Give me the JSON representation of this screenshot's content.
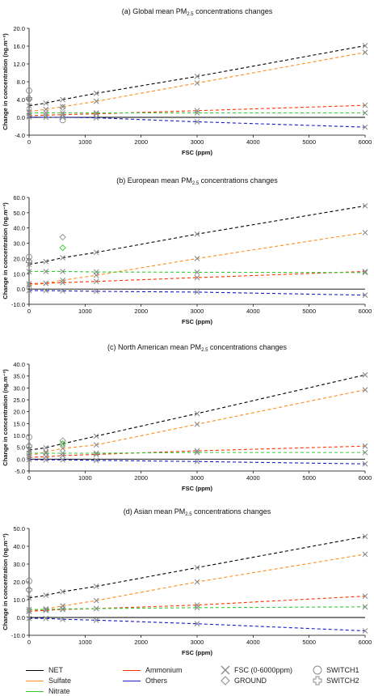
{
  "colors": {
    "net": "#000000",
    "sulfate": "#ff8c1a",
    "nitrate": "#33cc33",
    "ammonium": "#ff3300",
    "others": "#1a1acc",
    "marker": "#8c8c8c"
  },
  "legend": {
    "net": "NET",
    "sulfate": "Sulfate",
    "nitrate": "Nitrate",
    "ammonium": "Ammonium",
    "others": "Others",
    "fsc": "FSC (0-6000ppm)",
    "ground": "GROUND",
    "switch1": "SWITCH1",
    "switch2": "SWITCH2"
  },
  "chart_data": [
    {
      "type": "scatter",
      "title": "(a) Global mean PM2.5 concentrations changes",
      "xlabel": "FSC (ppm)",
      "ylabel": "Change in concentration (ng.m⁻³)",
      "xlim": [
        0,
        6000
      ],
      "ylim": [
        -4,
        20
      ],
      "xticks": [
        0,
        1000,
        2000,
        3000,
        4000,
        5000,
        6000
      ],
      "yticks": [
        "-4.0",
        "0.0",
        "4.0",
        "8.0",
        "12.0",
        "16.0",
        "20.0"
      ],
      "grid": false,
      "x": [
        0,
        300,
        600,
        1200,
        3000,
        6000
      ],
      "series": [
        {
          "key": "net",
          "values": [
            2.6,
            3.2,
            4.0,
            5.4,
            9.2,
            16.1
          ]
        },
        {
          "key": "sulfate",
          "values": [
            1.3,
            1.8,
            2.4,
            3.6,
            7.7,
            14.6
          ]
        },
        {
          "key": "ammonium",
          "values": [
            0.4,
            0.5,
            0.6,
            0.8,
            1.5,
            2.7
          ]
        },
        {
          "key": "nitrate",
          "values": [
            1.0,
            1.0,
            1.0,
            1.0,
            1.0,
            1.0
          ]
        },
        {
          "key": "others",
          "values": [
            0.1,
            0.0,
            0.0,
            -0.1,
            -1.0,
            -2.2
          ]
        }
      ],
      "ground": [
        {
          "x": 0,
          "y": 4.0
        },
        {
          "x": 600,
          "y": 2.2
        }
      ],
      "switch1": [
        {
          "x": 0,
          "y": 6.0
        },
        {
          "x": 600,
          "y": -0.6
        }
      ],
      "switch2": [
        {
          "x": 0,
          "y": 4.2
        }
      ]
    },
    {
      "type": "scatter",
      "title": "(b) European mean PM2.5 concentrations changes",
      "xlabel": "FSC (ppm)",
      "ylabel": "Change in concentration (ng.m⁻³)",
      "xlim": [
        0,
        6000
      ],
      "ylim": [
        -10,
        60
      ],
      "xticks": [
        0,
        1000,
        2000,
        3000,
        4000,
        5000,
        6000
      ],
      "yticks": [
        "-10.0",
        "0.0",
        "10.0",
        "20.0",
        "30.0",
        "40.0",
        "50.0",
        "60.0"
      ],
      "grid": false,
      "x": [
        0,
        300,
        600,
        1200,
        3000,
        6000
      ],
      "series": [
        {
          "key": "net",
          "values": [
            16.2,
            18.0,
            20.5,
            24.0,
            36.0,
            54.5
          ]
        },
        {
          "key": "sulfate",
          "values": [
            2.5,
            3.8,
            5.8,
            9.0,
            20.0,
            37.0
          ]
        },
        {
          "key": "ammonium",
          "values": [
            3.5,
            3.8,
            4.2,
            5.0,
            7.5,
            11.5
          ]
        },
        {
          "key": "nitrate",
          "values": [
            11.5,
            11.5,
            11.5,
            11.2,
            11.0,
            10.8
          ]
        },
        {
          "key": "others",
          "values": [
            -1.0,
            -1.0,
            -1.2,
            -1.5,
            -2.0,
            -4.0
          ]
        }
      ],
      "ground": [
        {
          "x": 600,
          "y": 34.0
        },
        {
          "x": 600,
          "y": 27.0
        }
      ],
      "switch1": [
        {
          "x": 0,
          "y": 21.0
        }
      ],
      "switch2": [
        {
          "x": 0,
          "y": 18.0
        }
      ]
    },
    {
      "type": "scatter",
      "title": "(c) North American mean PM2.5 concentrations changes",
      "xlabel": "FSC (ppm)",
      "ylabel": "Change in concentration (ng.m⁻³)",
      "xlim": [
        0,
        6000
      ],
      "ylim": [
        -5,
        40
      ],
      "xticks": [
        0,
        1000,
        2000,
        3000,
        4000,
        5000,
        6000
      ],
      "yticks": [
        "-5.0",
        "0.0",
        "5.0",
        "10.0",
        "15.0",
        "20.0",
        "25.0",
        "30.0",
        "35.0",
        "40.0"
      ],
      "grid": false,
      "x": [
        0,
        300,
        600,
        1200,
        3000,
        6000
      ],
      "series": [
        {
          "key": "net",
          "values": [
            3.8,
            4.8,
            6.5,
            9.7,
            19.2,
            35.5
          ]
        },
        {
          "key": "sulfate",
          "values": [
            1.5,
            3.0,
            4.5,
            6.0,
            14.7,
            29.2
          ]
        },
        {
          "key": "ammonium",
          "values": [
            0.8,
            1.0,
            1.5,
            2.0,
            3.5,
            5.5
          ]
        },
        {
          "key": "nitrate",
          "values": [
            2.5,
            2.5,
            2.5,
            2.5,
            2.8,
            2.8
          ]
        },
        {
          "key": "others",
          "values": [
            -0.2,
            -0.3,
            -0.3,
            -0.5,
            -1.0,
            -2.0
          ]
        }
      ],
      "ground": [
        {
          "x": 600,
          "y": 7.8
        },
        {
          "x": 600,
          "y": 6.5
        }
      ],
      "switch1": [
        {
          "x": 0,
          "y": 9.3
        }
      ],
      "switch2": [
        {
          "x": 0,
          "y": 5.5
        }
      ]
    },
    {
      "type": "scatter",
      "title": "(d) Asian mean PM2.5 concentrations changes",
      "xlabel": "FSC (ppm)",
      "ylabel": "Change in concentration (ng.m⁻³)",
      "xlim": [
        0,
        6000
      ],
      "ylim": [
        -10,
        50
      ],
      "xticks": [
        0,
        1000,
        2000,
        3000,
        4000,
        5000,
        6000
      ],
      "yticks": [
        "-10.0",
        "0.0",
        "10.0",
        "20.0",
        "30.0",
        "40.0",
        "50.0"
      ],
      "grid": false,
      "x": [
        0,
        300,
        600,
        1200,
        3000,
        6000
      ],
      "series": [
        {
          "key": "net",
          "values": [
            11.0,
            12.5,
            14.5,
            17.5,
            28.0,
            45.5
          ]
        },
        {
          "key": "sulfate",
          "values": [
            3.5,
            4.8,
            6.5,
            9.5,
            20.0,
            35.5
          ]
        },
        {
          "key": "ammonium",
          "values": [
            3.5,
            4.0,
            4.5,
            5.0,
            7.0,
            12.0
          ]
        },
        {
          "key": "nitrate",
          "values": [
            4.5,
            4.5,
            4.8,
            5.0,
            5.5,
            6.0
          ]
        },
        {
          "key": "others",
          "values": [
            -0.5,
            -0.5,
            -1.0,
            -1.5,
            -3.5,
            -7.5
          ]
        }
      ],
      "ground": [],
      "switch1": [
        {
          "x": 0,
          "y": 20.5
        }
      ],
      "switch2": [
        {
          "x": 0,
          "y": 15.5
        }
      ]
    }
  ]
}
